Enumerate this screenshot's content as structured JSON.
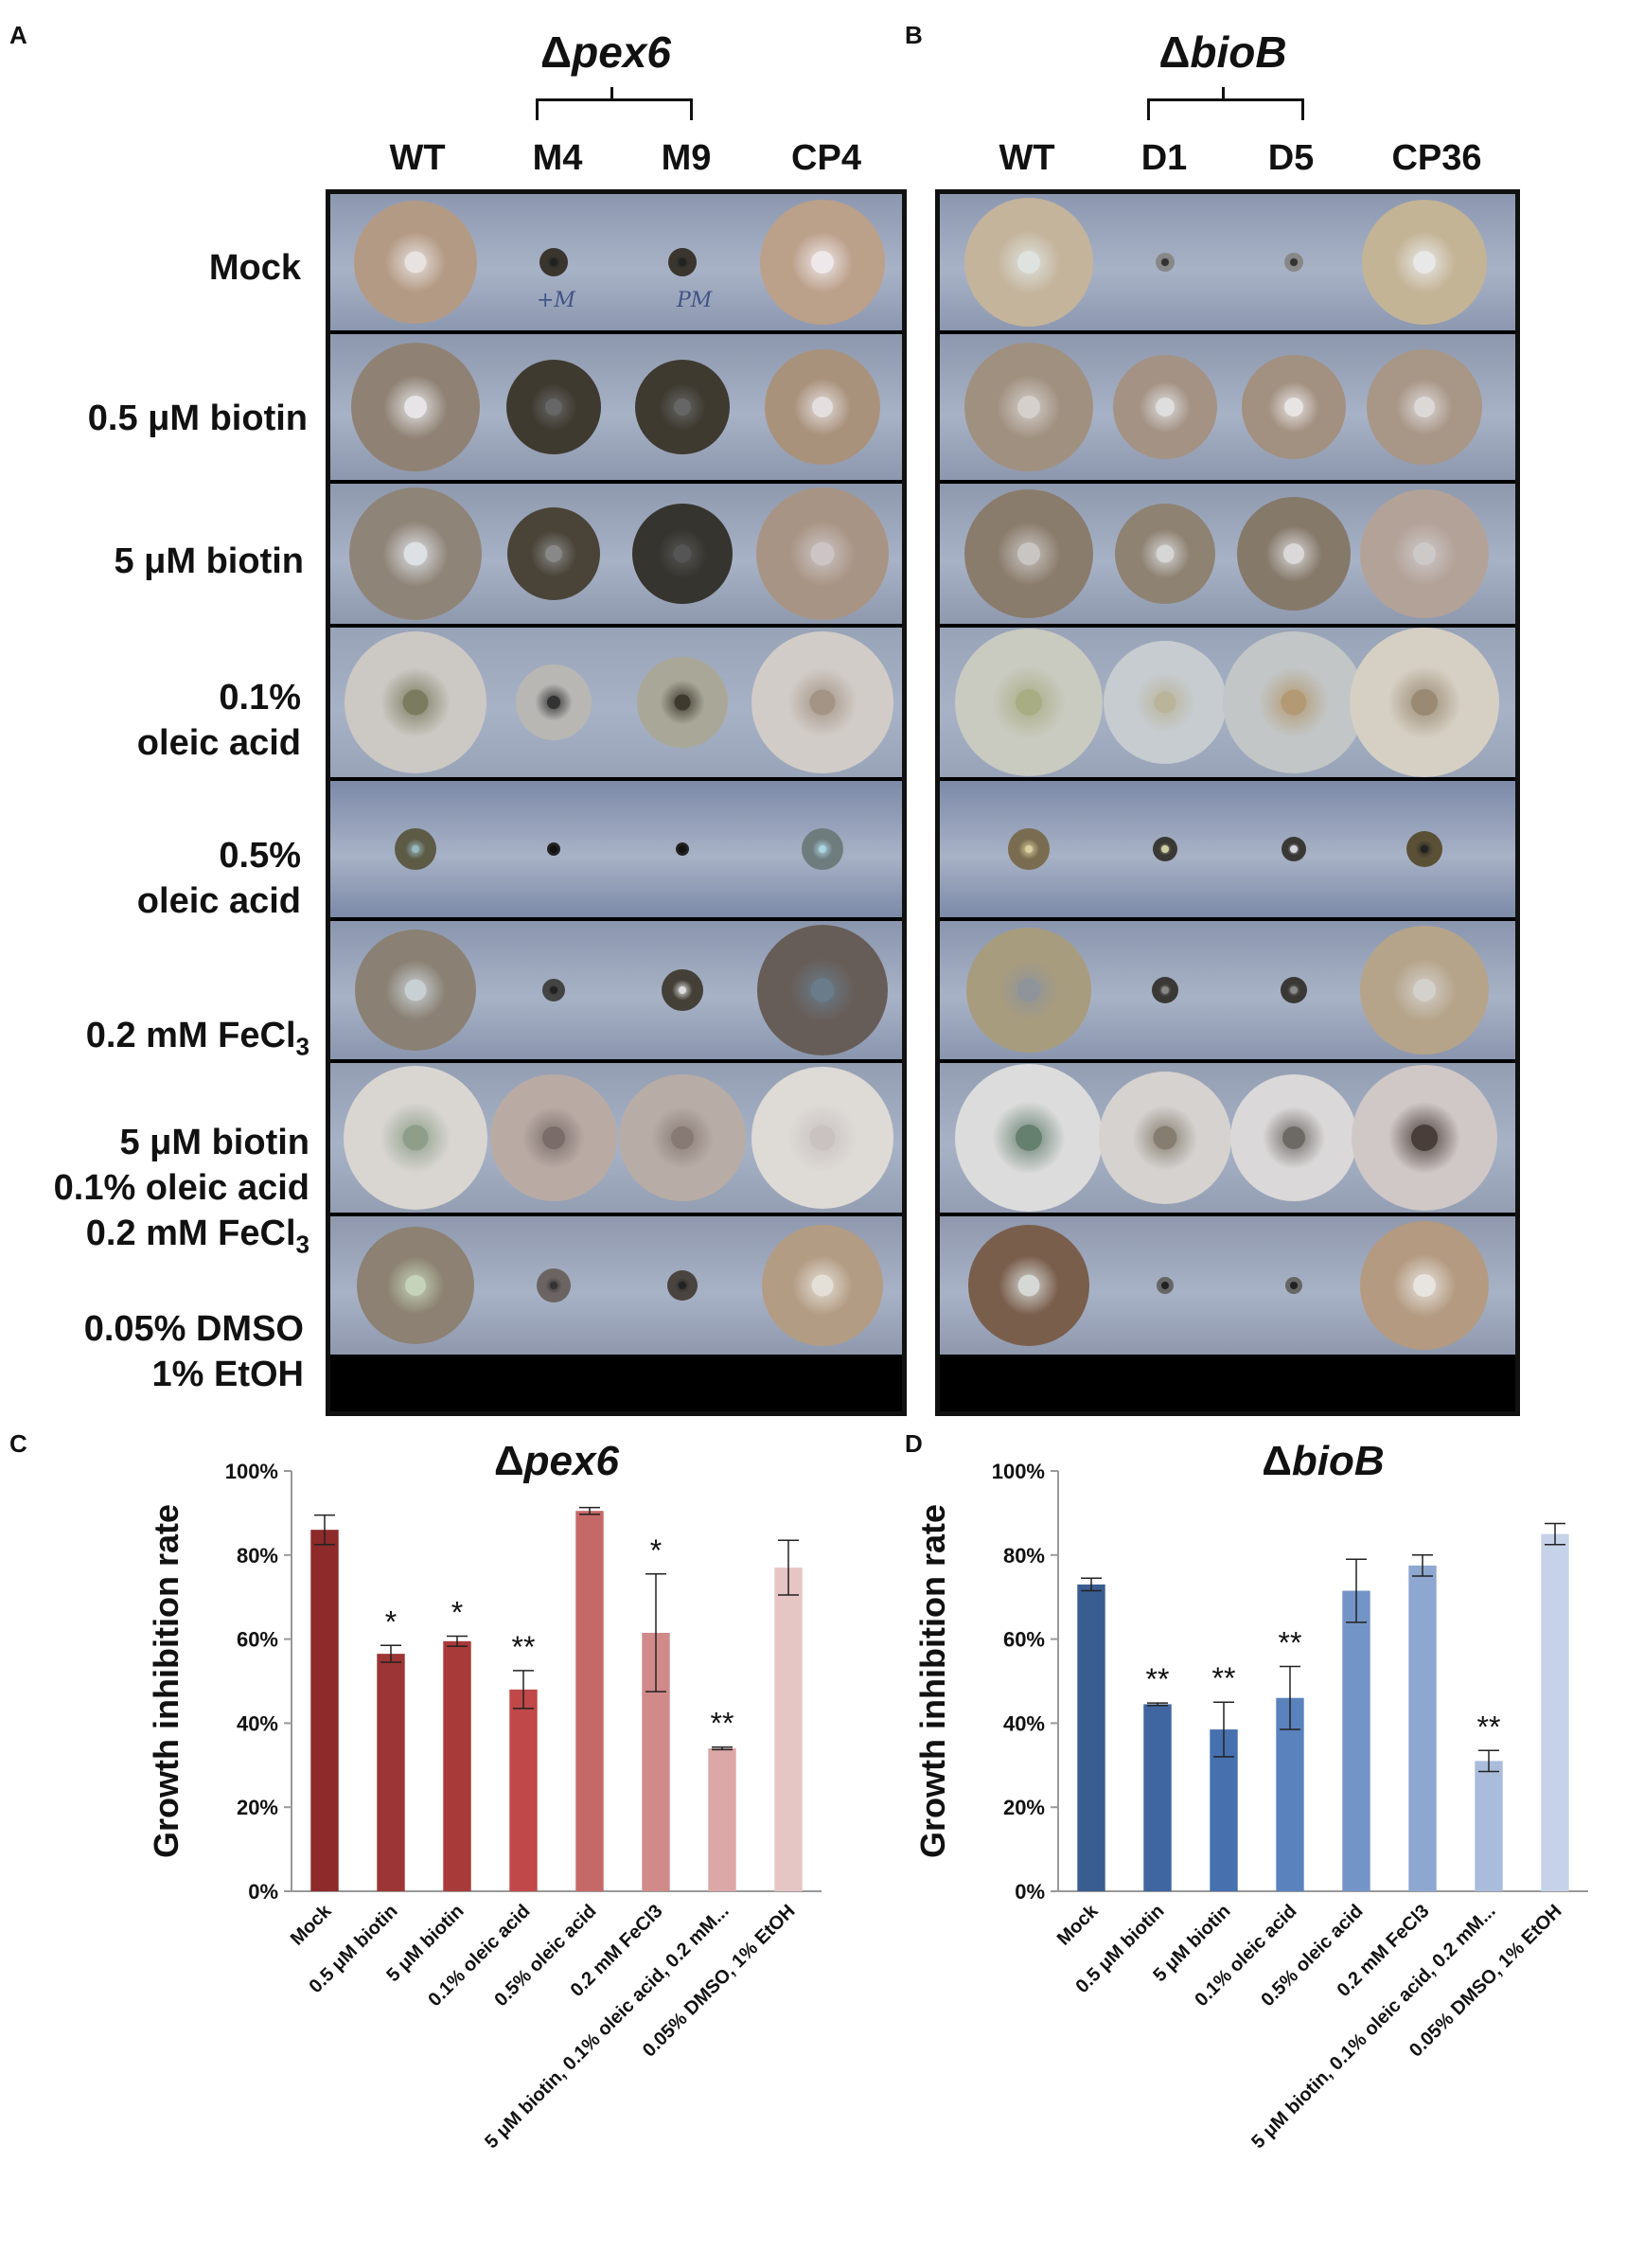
{
  "panels": {
    "A": {
      "letter": "A",
      "title_symbol": "Δ",
      "title_gene": "pex6",
      "columns": [
        "WT",
        "M4",
        "M9",
        "CP4"
      ]
    },
    "B": {
      "letter": "B",
      "title_symbol": "Δ",
      "title_gene": "bioB",
      "columns": [
        "WT",
        "D1",
        "D5",
        "CP36"
      ]
    },
    "C": {
      "letter": "C",
      "title_symbol": "Δ",
      "title_gene": "pex6"
    },
    "D": {
      "letter": "D",
      "title_symbol": "Δ",
      "title_gene": "bioB"
    }
  },
  "row_labels": [
    {
      "lines": [
        "Mock"
      ]
    },
    {
      "lines": [
        "0.5 μM biotin"
      ]
    },
    {
      "lines": [
        "5 μM biotin"
      ]
    },
    {
      "lines": [
        "0.1%",
        "oleic acid"
      ]
    },
    {
      "lines": [
        "0.5%",
        "oleic acid"
      ]
    },
    {
      "lines": [
        "0.2 mM FeCl",
        "3"
      ]
    },
    {
      "lines": [
        "5 μM biotin",
        "0.1% oleic acid",
        "0.2 mM FeCl",
        "3"
      ]
    },
    {
      "lines": [
        "0.05% DMSO",
        "1% EtOH"
      ]
    }
  ],
  "plate_marks": [
    "+M",
    "PM"
  ],
  "chart_data": [
    {
      "type": "bar",
      "panel": "C",
      "title": "Δpex6",
      "ylabel": "Growth inhibition rate",
      "xlabel": "",
      "ylim": [
        0,
        100
      ],
      "yticks": [
        "0%",
        "20%",
        "40%",
        "60%",
        "80%",
        "100%"
      ],
      "categories": [
        "Mock",
        "0.5 μM biotin",
        "5 μM biotin",
        "0.1%  oleic acid",
        "0.5% oleic acid",
        "0.2 mM FeCl3",
        "5 μM biotin, 0.1% oleic acid, 0.2 mM...",
        "0.05% DMSO, 1% EtOH"
      ],
      "values": [
        86,
        56.5,
        59.5,
        48,
        90.5,
        61.5,
        34,
        77
      ],
      "errors": [
        3.5,
        2,
        1.2,
        4.5,
        0.8,
        14,
        0.3,
        6.5
      ],
      "significance": [
        "",
        "*",
        "*",
        "**",
        "",
        "*",
        "**",
        ""
      ],
      "colors": [
        "#8e2a2a",
        "#9c3535",
        "#a83a3a",
        "#c04848",
        "#c56868",
        "#d08a8a",
        "#dca7a7",
        "#e6c5c5"
      ],
      "grid": false
    },
    {
      "type": "bar",
      "panel": "D",
      "title": "ΔbioB",
      "ylabel": "Growth inhibition rate",
      "xlabel": "",
      "ylim": [
        0,
        100
      ],
      "yticks": [
        "0%",
        "20%",
        "40%",
        "60%",
        "80%",
        "100%"
      ],
      "categories": [
        "Mock",
        "0.5 μM biotin",
        "5 μM biotin",
        "0.1%  oleic acid",
        "0.5% oleic acid",
        "0.2 mM FeCl3",
        "5 μM biotin, 0.1% oleic acid, 0.2 mM...",
        "0.05% DMSO, 1% EtOH"
      ],
      "values": [
        73,
        44.5,
        38.5,
        46,
        71.5,
        77.5,
        31,
        85
      ],
      "errors": [
        1.5,
        0.3,
        6.5,
        7.5,
        7.5,
        2.5,
        2.5,
        2.5
      ],
      "significance": [
        "",
        "**",
        "**",
        "**",
        "",
        "",
        "**",
        ""
      ],
      "colors": [
        "#3a5d8f",
        "#3f66a0",
        "#4670ae",
        "#5a82bd",
        "#7394c6",
        "#8ea7d0",
        "#aabcdc",
        "#c5d2e8"
      ],
      "grid": false
    }
  ]
}
